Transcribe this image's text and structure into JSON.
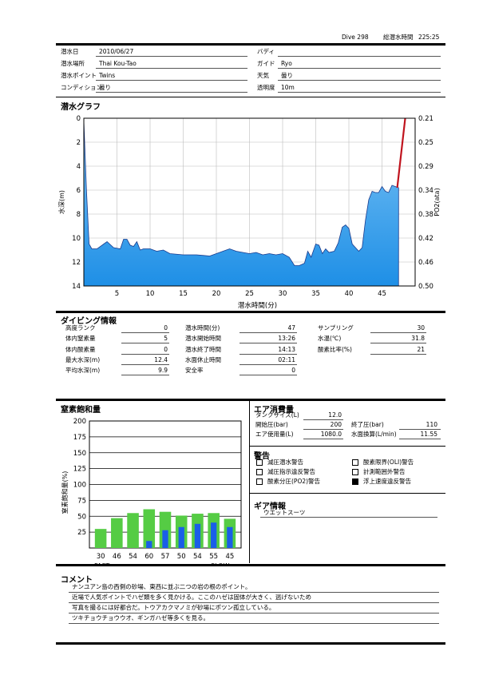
{
  "header": {
    "dive_no": "Dive 298",
    "total_label": "総潜水時間",
    "total_value": "225:25"
  },
  "info": {
    "date_label": "潜水日",
    "date": "2010/06/27",
    "buddy_label": "バディ",
    "buddy": "",
    "place_label": "潜水場所",
    "place": "Thai Kou-Tao",
    "guide_label": "ガイド",
    "guide": "Ryo",
    "point_label": "潜水ポイント",
    "point": "Twins",
    "weather_label": "天気",
    "weather": "曇り",
    "condition_label": "コンディション",
    "condition": "曇り",
    "visibility_label": "透明度",
    "visibility": "10m"
  },
  "graph": {
    "title": "潜水グラフ",
    "xlabel": "潜水時間(分)",
    "ylabel_left": "水深(m)",
    "ylabel_right": "PO2(ata)"
  },
  "chart_data": [
    {
      "type": "area",
      "title": "",
      "xlabel": "潜水時間(分)",
      "ylabel": "水深(m)",
      "y2label": "PO2(ata)",
      "xlim": [
        0,
        50
      ],
      "ylim": [
        0,
        14
      ],
      "y_inverted": true,
      "x_ticks": [
        5,
        10,
        15,
        20,
        25,
        30,
        35,
        40,
        45
      ],
      "y_ticks": [
        0,
        2,
        4,
        6,
        8,
        10,
        12,
        14
      ],
      "y2_ticks": [
        "0.21",
        "0.25",
        "0.29",
        "0.34",
        "0.38",
        "0.42",
        "0.46",
        "0.50"
      ],
      "series": [
        {
          "kind": "depth",
          "x": [
            0,
            0.4,
            0.8,
            1.2,
            2,
            3,
            3.5,
            4.5,
            5.5,
            6,
            6.5,
            7,
            7.5,
            8,
            8.5,
            9,
            10,
            11,
            12,
            13,
            15,
            17,
            19,
            20,
            21,
            22,
            23,
            24,
            25,
            26,
            27,
            28,
            29,
            30,
            31,
            31.8,
            32.5,
            33.3,
            33.8,
            34.3,
            35,
            35.5,
            36,
            36.5,
            37,
            37.8,
            38.4,
            39,
            39.5,
            40,
            40.5,
            41,
            41.5,
            42,
            42.5,
            43,
            43.5,
            44,
            44.5,
            45,
            45.5,
            46,
            46.5,
            47,
            47.5
          ],
          "y": [
            0.2,
            6,
            10.5,
            10.9,
            10.9,
            10.5,
            10.3,
            10.8,
            10.9,
            10.1,
            10.1,
            10.6,
            10.7,
            10.3,
            11,
            10.9,
            10.9,
            11.1,
            11,
            11.3,
            11.4,
            11.4,
            11.5,
            11.3,
            11.1,
            10.9,
            11.1,
            11.2,
            11.3,
            11.2,
            11.4,
            11.3,
            11.4,
            11.3,
            11.6,
            12.3,
            12.3,
            12.1,
            11.1,
            11.6,
            10.5,
            10.6,
            11.3,
            10.9,
            11.2,
            11.1,
            10.4,
            9.1,
            8.9,
            9.2,
            10.5,
            10.8,
            11.1,
            10.8,
            8.5,
            6.8,
            6.1,
            6.2,
            6.2,
            5.7,
            6.1,
            6.2,
            5.6,
            5.7,
            5.8
          ]
        },
        {
          "kind": "po2-line",
          "x": [
            47.3,
            48.5
          ],
          "y": [
            5.8,
            0
          ]
        }
      ]
    },
    {
      "type": "bar",
      "title": "窒素飽和量",
      "ylabel": "窒素飽和量(%)",
      "ylim": [
        0,
        200
      ],
      "y_ticks": [
        25,
        50,
        75,
        100,
        125,
        150,
        175,
        200
      ],
      "categories": [
        "30",
        "46",
        "54",
        "60",
        "57",
        "50",
        "54",
        "55",
        "45"
      ],
      "series": [
        {
          "color": "#55cc44",
          "values": [
            30,
            47,
            55,
            61,
            57,
            51,
            54,
            55,
            46
          ]
        },
        {
          "color": "#1a5ee8",
          "values": [
            0,
            0,
            0,
            11,
            28,
            33,
            38,
            40,
            33
          ]
        }
      ],
      "fast_label": "FAST",
      "slow_label": "SLOW"
    }
  ],
  "dive_info": {
    "title": "ダイビング情報",
    "col1": [
      {
        "label": "高度ランク",
        "value": "0"
      },
      {
        "label": "体内窒素量",
        "value": "5"
      },
      {
        "label": "体内酸素量",
        "value": "0"
      },
      {
        "label": "最大水深(m)",
        "value": "12.4"
      },
      {
        "label": "平均水深(m)",
        "value": "9.9"
      }
    ],
    "col2": [
      {
        "label": "潜水時間(分)",
        "value": "47"
      },
      {
        "label": "潜水開始時間",
        "value": "13:26"
      },
      {
        "label": "潜水終了時間",
        "value": "14:13"
      },
      {
        "label": "水面休止時間",
        "value": "02:11"
      },
      {
        "label": "安全率",
        "value": "0"
      }
    ],
    "col3": [
      {
        "label": "サンプリング",
        "value": "30"
      },
      {
        "label": "水温(℃)",
        "value": "31.8"
      },
      {
        "label": "酸素比率(%)",
        "value": "21"
      }
    ]
  },
  "air": {
    "title": "エア消費量",
    "tank_label": "タンクサイズ(L)",
    "tank": "12.0",
    "start_label": "開始圧(bar)",
    "start": "200",
    "end_label": "終了圧(bar)",
    "end": "110",
    "used_label": "エア使用量(L)",
    "used": "1080.0",
    "surface_label": "水面換算(L/min)",
    "surface": "11.55"
  },
  "warnings": {
    "title": "警告",
    "items": [
      {
        "label": "減圧潜水警告",
        "checked": false
      },
      {
        "label": "酸素限界(OLI)警告",
        "checked": false
      },
      {
        "label": "減圧指示違反警告",
        "checked": false
      },
      {
        "label": "計測範囲外警告",
        "checked": false
      },
      {
        "label": "酸素分圧(PO2)警告",
        "checked": false
      },
      {
        "label": "浮上速度違反警告",
        "checked": true
      }
    ]
  },
  "gear": {
    "title": "ギア情報",
    "item": "ウエットスーツ"
  },
  "comment": {
    "title": "コメント",
    "lines": [
      "ナンユアン島の西側の砂場、東西に並ぶ二つの岩の根のポイント。",
      "近場で人気ポイントでハゼ類を多く見かける。ここのハゼは固体が大きく、逃げないため",
      "写真を撮るには好都合だ。トウアカクマノミが砂場にポツン孤立している。",
      "ツキチョウチョウウオ、ギンガハゼ等多くを見る。"
    ]
  }
}
